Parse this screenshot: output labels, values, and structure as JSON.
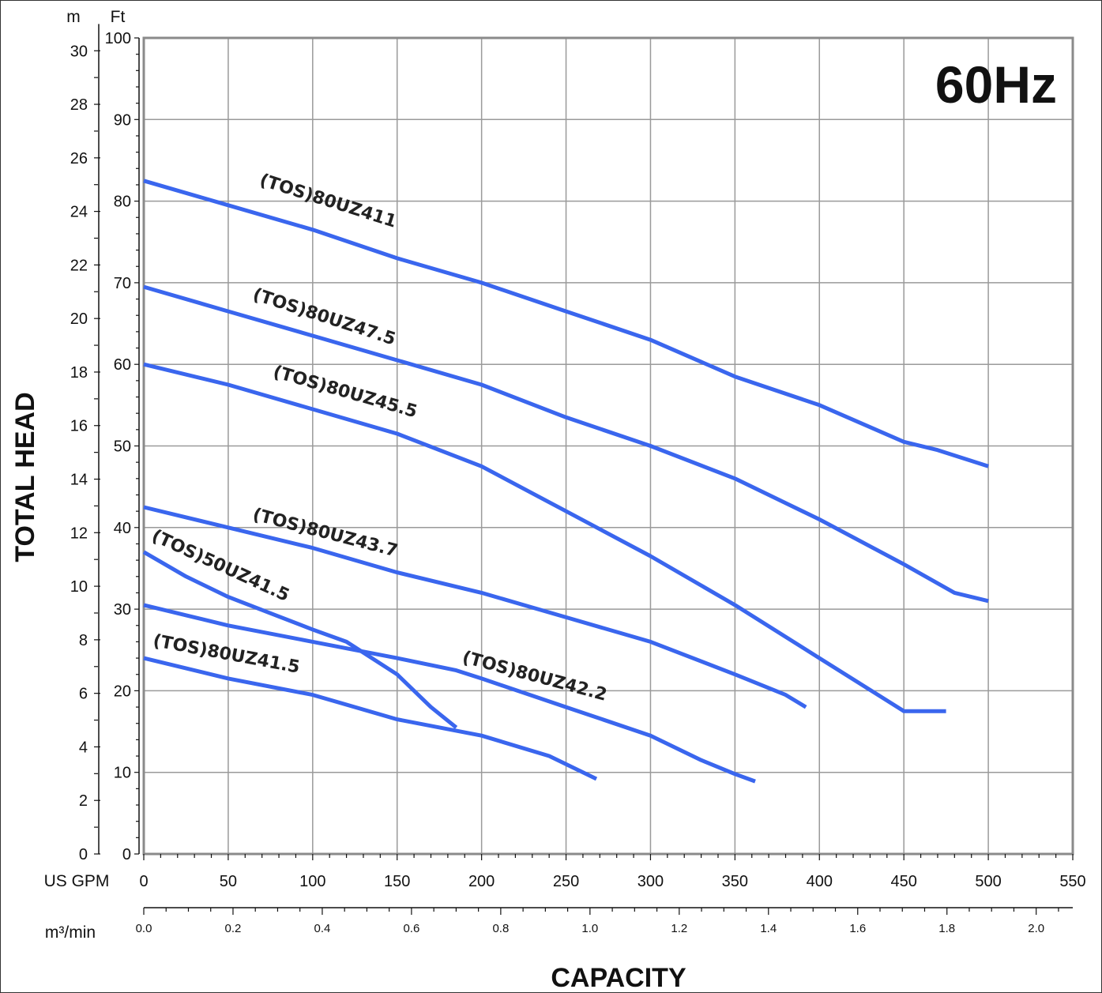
{
  "chart_data": {
    "type": "line",
    "frequency_badge": "60Hz",
    "xlabel": "CAPACITY",
    "ylabel": "TOTAL HEAD",
    "x_unit_primary": "US GPM",
    "x_unit_secondary": "m³/min",
    "y_unit_primary": "Ft",
    "y_unit_secondary": "m",
    "xlim": [
      0,
      550
    ],
    "ylim": [
      0,
      100
    ],
    "x_ticks": [
      "0",
      "50",
      "100",
      "150",
      "200",
      "250",
      "300",
      "350",
      "400",
      "450",
      "500",
      "550"
    ],
    "x_ticks_m3min": [
      "0.0",
      "0.2",
      "0.4",
      "0.6",
      "0.8",
      "1.0",
      "1.2",
      "1.4",
      "1.6",
      "1.8",
      "2.0"
    ],
    "y_ticks_ft": [
      "0",
      "10",
      "20",
      "30",
      "40",
      "50",
      "60",
      "70",
      "80",
      "90",
      "100"
    ],
    "y_ticks_m": [
      "0",
      "2",
      "4",
      "6",
      "8",
      "10",
      "12",
      "14",
      "16",
      "18",
      "20",
      "22",
      "24",
      "26",
      "28",
      "30"
    ],
    "grid": true,
    "line_color": "#3a66ee",
    "series": [
      {
        "name": "(TOS)80UZ411",
        "x": [
          0,
          50,
          100,
          150,
          200,
          250,
          300,
          350,
          400,
          450,
          470,
          500
        ],
        "y": [
          82.5,
          79.5,
          76.5,
          73,
          70,
          66.5,
          63,
          58.5,
          55,
          50.5,
          49.5,
          47.5
        ]
      },
      {
        "name": "(TOS)80UZ47.5",
        "x": [
          0,
          50,
          100,
          150,
          200,
          250,
          300,
          350,
          400,
          450,
          480,
          500
        ],
        "y": [
          69.5,
          66.5,
          63.5,
          60.5,
          57.5,
          53.5,
          50,
          46,
          41,
          35.5,
          32,
          31
        ]
      },
      {
        "name": "(TOS)80UZ45.5",
        "x": [
          0,
          50,
          100,
          150,
          200,
          250,
          300,
          350,
          400,
          450,
          475
        ],
        "y": [
          60,
          57.5,
          54.5,
          51.5,
          47.5,
          42,
          36.5,
          30.5,
          24,
          17.5,
          17.5
        ]
      },
      {
        "name": "(TOS)80UZ43.7",
        "x": [
          0,
          50,
          100,
          150,
          200,
          250,
          300,
          350,
          380,
          392
        ],
        "y": [
          42.5,
          40,
          37.5,
          34.5,
          32,
          29,
          26,
          22,
          19.5,
          18
        ]
      },
      {
        "name": "(TOS)50UZ41.5",
        "x": [
          0,
          25,
          50,
          75,
          100,
          120,
          150,
          170,
          185
        ],
        "y": [
          37,
          34,
          31.5,
          29.5,
          27.5,
          26,
          22,
          18,
          15.5
        ]
      },
      {
        "name": "(TOS)80UZ42.2",
        "x": [
          0,
          30,
          50,
          100,
          150,
          185,
          200,
          250,
          300,
          330,
          350,
          362
        ],
        "y": [
          30.5,
          29,
          28,
          26,
          24,
          22.5,
          21.5,
          18,
          14.5,
          11.5,
          9.8,
          8.9
        ]
      },
      {
        "name": "(TOS)80UZ41.5",
        "x": [
          0,
          50,
          100,
          150,
          200,
          240,
          268
        ],
        "y": [
          24,
          21.5,
          19.5,
          16.5,
          14.5,
          12,
          9.2
        ]
      }
    ]
  }
}
